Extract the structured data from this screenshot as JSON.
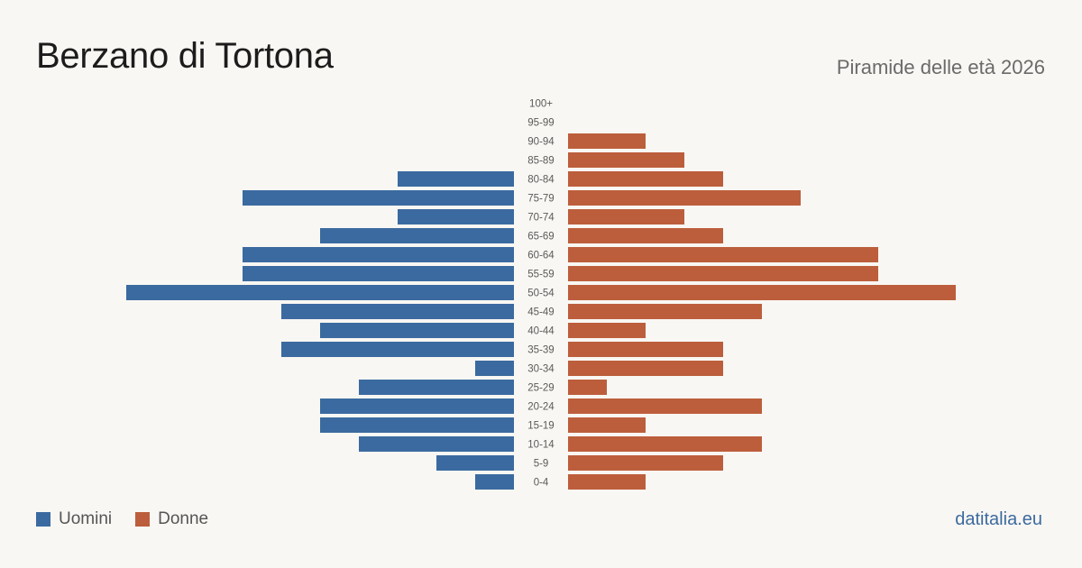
{
  "header": {
    "title": "Berzano di Tortona",
    "subtitle": "Piramide delle età 2026"
  },
  "legend": {
    "men_label": "Uomini",
    "women_label": "Donne"
  },
  "brand": "datitalia.eu",
  "colors": {
    "men": "#3b6aa0",
    "women": "#bc5e3c",
    "background": "#f9f7f3"
  },
  "chart_data": {
    "type": "bar",
    "orientation": "horizontal-population-pyramid",
    "categories": [
      "100+",
      "95-99",
      "90-94",
      "85-89",
      "80-84",
      "75-79",
      "70-74",
      "65-69",
      "60-64",
      "55-59",
      "50-54",
      "45-49",
      "40-44",
      "35-39",
      "30-34",
      "25-29",
      "20-24",
      "15-19",
      "10-14",
      "5-9",
      "0-4"
    ],
    "series": [
      {
        "name": "Uomini",
        "values": [
          0,
          0,
          0,
          0,
          3,
          7,
          3,
          5,
          7,
          7,
          10,
          6,
          5,
          6,
          1,
          4,
          5,
          5,
          4,
          2,
          1
        ]
      },
      {
        "name": "Donne",
        "values": [
          0,
          0,
          2,
          3,
          4,
          6,
          3,
          4,
          8,
          8,
          10,
          5,
          2,
          4,
          4,
          1,
          5,
          2,
          5,
          4,
          2
        ]
      }
    ],
    "xlim": [
      0,
      10
    ],
    "grid": false,
    "legend_position": "bottom-left"
  }
}
